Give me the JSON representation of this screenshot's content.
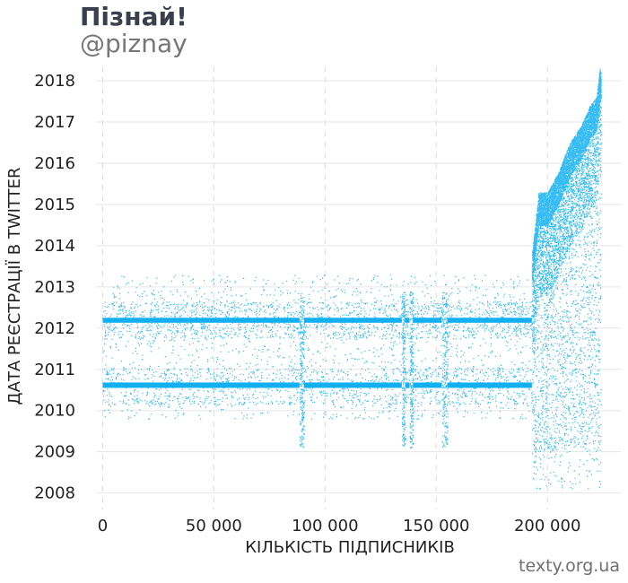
{
  "header": {
    "title": "Пізнай!",
    "subtitle": "@piznay"
  },
  "footer": {
    "source": "texty.org.ua"
  },
  "colors": {
    "points": "#12b0f0",
    "grid": "#e6e6e6",
    "grid_dashed": "#dcdcdc"
  },
  "chart_data": {
    "type": "scatter",
    "xlabel": "КІЛЬКІСТЬ ПІДПИСНИКІВ",
    "ylabel": "ДАТА РЕЄСТРАЦІЇ В TWITTER",
    "xlim": [
      -3000,
      233000
    ],
    "ylim": [
      2007.6,
      2018.35
    ],
    "x_ticks": [
      0,
      50000,
      100000,
      150000,
      200000
    ],
    "x_tick_labels": [
      "0",
      "50 000",
      "100 000",
      "150 000",
      "200 000"
    ],
    "y_ticks": [
      2008,
      2009,
      2010,
      2011,
      2012,
      2013,
      2014,
      2015,
      2016,
      2017,
      2018
    ],
    "y_tick_labels": [
      "2008",
      "2009",
      "2010",
      "2011",
      "2012",
      "2013",
      "2014",
      "2015",
      "2016",
      "2017",
      "2018"
    ],
    "grid": true,
    "series": [
      {
        "values_description_only": false,
        "dense_bands": [
          {
            "x": [
              0,
              193000
            ],
            "y": [
              2012.13,
              2012.25
            ]
          },
          {
            "x": [
              0,
              193000
            ],
            "y": [
              2010.55,
              2010.68
            ]
          }
        ],
        "band_gaps_x": [
          [
            88500,
            90500
          ],
          [
            134500,
            136000
          ],
          [
            138000,
            139500
          ],
          [
            152500,
            155000
          ]
        ],
        "sparse_region": {
          "x": [
            0,
            193000
          ],
          "y": [
            2009.8,
            2013.3
          ]
        },
        "growth_region": {
          "x": [
            193000,
            224000
          ],
          "lower_y": 2009.0,
          "upper_curve": [
            [
              193000,
              2013.8
            ],
            [
              196000,
              2015.3
            ],
            [
              200000,
              2015.3
            ],
            [
              205000,
              2015.8
            ],
            [
              210000,
              2016.5
            ],
            [
              215000,
              2016.9
            ],
            [
              219000,
              2017.4
            ],
            [
              222000,
              2017.6
            ],
            [
              223500,
              2018.3
            ]
          ]
        }
      }
    ]
  }
}
